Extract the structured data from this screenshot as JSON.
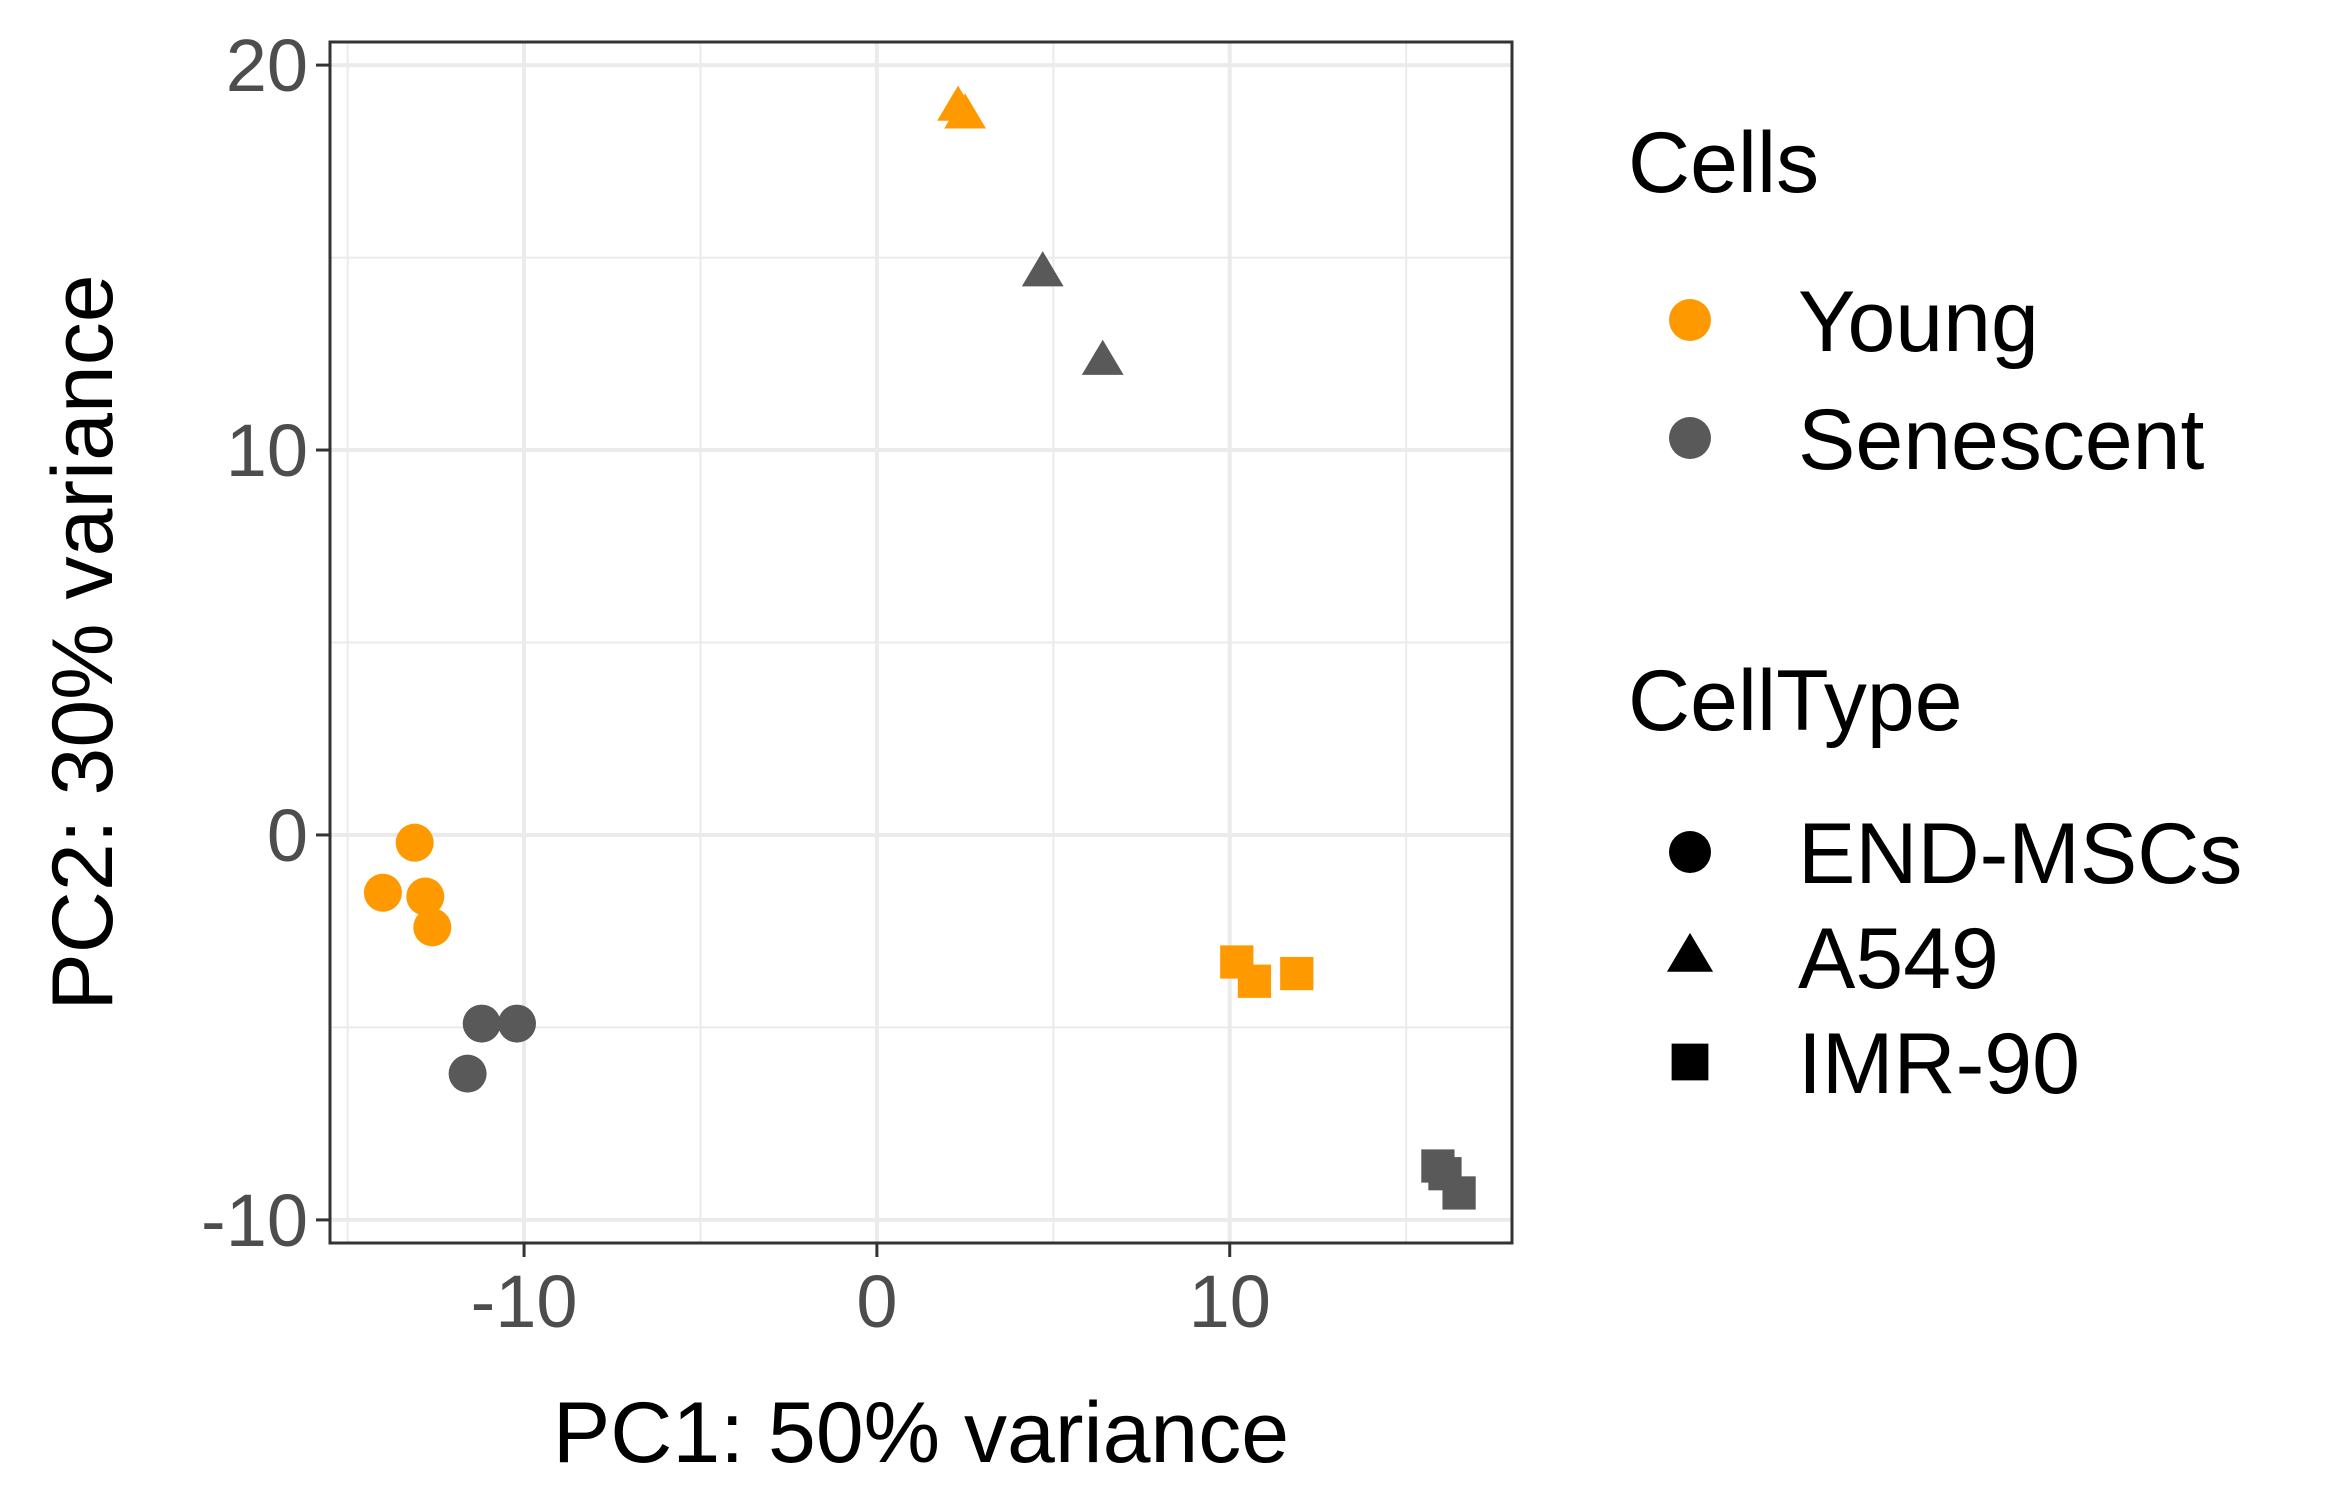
{
  "chart_data": {
    "type": "scatter",
    "xlabel": "PC1: 50% variance",
    "ylabel": "PC2: 30% variance",
    "xlim": [
      -15.5,
      18
    ],
    "ylim": [
      -10.6,
      20.6
    ],
    "x_ticks": [
      -10,
      0,
      10
    ],
    "x_tick_labels": [
      "-10",
      "0",
      "10"
    ],
    "y_ticks": [
      -10,
      0,
      10,
      20
    ],
    "y_tick_labels": [
      "-10",
      "0",
      "10",
      "20"
    ],
    "grid": true,
    "legend_position": "right",
    "colors": {
      "Young": "#FF9900",
      "Senescent": "#595959"
    },
    "legends": [
      {
        "title": "Cells",
        "entries": [
          {
            "label": "Young",
            "shape": "circle",
            "color": "#FF9900"
          },
          {
            "label": "Senescent",
            "shape": "circle",
            "color": "#595959"
          }
        ]
      },
      {
        "title": "CellType",
        "entries": [
          {
            "label": "END-MSCs",
            "shape": "circle",
            "color": "#000000"
          },
          {
            "label": "A549",
            "shape": "triangle",
            "color": "#000000"
          },
          {
            "label": "IMR-90",
            "shape": "square",
            "color": "#000000"
          }
        ]
      }
    ],
    "points": [
      {
        "x": -13.1,
        "y": -0.2,
        "cells": "Young",
        "celltype": "END-MSCs"
      },
      {
        "x": -14.0,
        "y": -1.5,
        "cells": "Young",
        "celltype": "END-MSCs"
      },
      {
        "x": -12.8,
        "y": -1.6,
        "cells": "Young",
        "celltype": "END-MSCs"
      },
      {
        "x": -12.6,
        "y": -2.4,
        "cells": "Young",
        "celltype": "END-MSCs"
      },
      {
        "x": -11.2,
        "y": -4.9,
        "cells": "Senescent",
        "celltype": "END-MSCs"
      },
      {
        "x": -10.2,
        "y": -4.9,
        "cells": "Senescent",
        "celltype": "END-MSCs"
      },
      {
        "x": -11.6,
        "y": -6.2,
        "cells": "Senescent",
        "celltype": "END-MSCs"
      },
      {
        "x": 2.3,
        "y": 18.9,
        "cells": "Young",
        "celltype": "A549"
      },
      {
        "x": 2.5,
        "y": 18.7,
        "cells": "Young",
        "celltype": "A549"
      },
      {
        "x": 4.7,
        "y": 14.6,
        "cells": "Senescent",
        "celltype": "A549"
      },
      {
        "x": 6.4,
        "y": 12.3,
        "cells": "Senescent",
        "celltype": "A549"
      },
      {
        "x": 10.2,
        "y": -3.3,
        "cells": "Young",
        "celltype": "IMR-90"
      },
      {
        "x": 10.7,
        "y": -3.8,
        "cells": "Young",
        "celltype": "IMR-90"
      },
      {
        "x": 11.9,
        "y": -3.6,
        "cells": "Young",
        "celltype": "IMR-90"
      },
      {
        "x": 15.9,
        "y": -8.6,
        "cells": "Senescent",
        "celltype": "IMR-90"
      },
      {
        "x": 16.1,
        "y": -8.8,
        "cells": "Senescent",
        "celltype": "IMR-90"
      },
      {
        "x": 16.5,
        "y": -9.3,
        "cells": "Senescent",
        "celltype": "IMR-90"
      }
    ]
  }
}
